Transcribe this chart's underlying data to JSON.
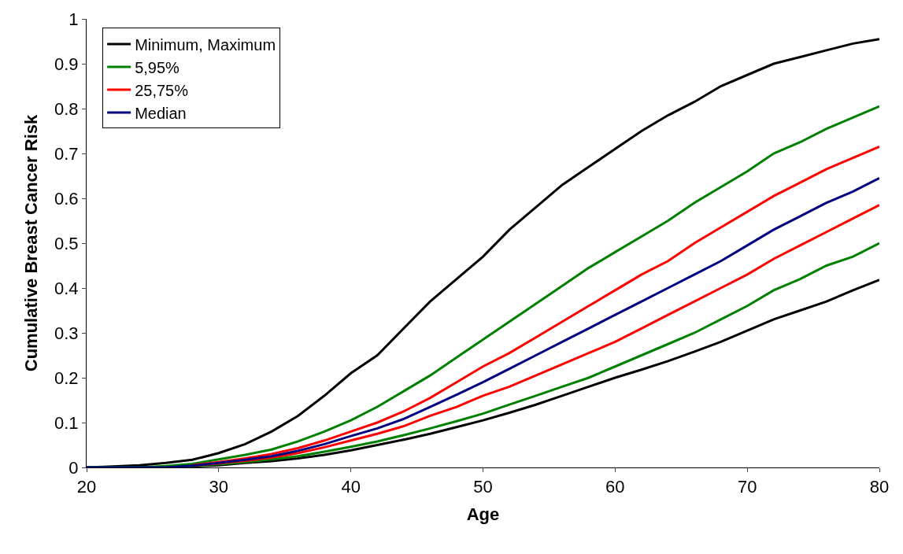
{
  "chart_data": {
    "type": "line",
    "xlabel": "Age",
    "ylabel": "Cumulative Breast Cancer Risk",
    "x": [
      20,
      22,
      24,
      26,
      28,
      30,
      32,
      34,
      36,
      38,
      40,
      42,
      44,
      46,
      48,
      50,
      52,
      54,
      56,
      58,
      60,
      62,
      64,
      66,
      68,
      70,
      72,
      74,
      76,
      78,
      80
    ],
    "series": [
      {
        "name": "Minimum, Maximum",
        "color": "#000000",
        "values": [
          0,
          0.002,
          0.005,
          0.01,
          0.017,
          0.032,
          0.052,
          0.08,
          0.115,
          0.16,
          0.21,
          0.25,
          0.31,
          0.37,
          0.42,
          0.47,
          0.53,
          0.58,
          0.63,
          0.67,
          0.71,
          0.75,
          0.785,
          0.815,
          0.85,
          0.875,
          0.9,
          0.915,
          0.93,
          0.945,
          0.955
        ]
      },
      {
        "name": null,
        "color": "#000000",
        "values": [
          0,
          0,
          0,
          0,
          0.002,
          0.005,
          0.01,
          0.014,
          0.02,
          0.028,
          0.038,
          0.05,
          0.062,
          0.075,
          0.09,
          0.105,
          0.122,
          0.14,
          0.16,
          0.18,
          0.2,
          0.218,
          0.237,
          0.258,
          0.28,
          0.305,
          0.33,
          0.35,
          0.37,
          0.395,
          0.418
        ]
      },
      {
        "name": "5,95%",
        "color": "#008000",
        "values": [
          0,
          0,
          0,
          0.003,
          0.008,
          0.018,
          0.028,
          0.04,
          0.058,
          0.08,
          0.105,
          0.135,
          0.17,
          0.205,
          0.245,
          0.285,
          0.325,
          0.365,
          0.405,
          0.445,
          0.48,
          0.515,
          0.55,
          0.59,
          0.625,
          0.66,
          0.7,
          0.725,
          0.755,
          0.78,
          0.805
        ]
      },
      {
        "name": null,
        "color": "#008000",
        "values": [
          0,
          0,
          0,
          0,
          0.003,
          0.007,
          0.012,
          0.018,
          0.025,
          0.035,
          0.046,
          0.058,
          0.072,
          0.087,
          0.103,
          0.12,
          0.14,
          0.16,
          0.18,
          0.2,
          0.225,
          0.25,
          0.275,
          0.3,
          0.33,
          0.36,
          0.395,
          0.42,
          0.45,
          0.47,
          0.5
        ]
      },
      {
        "name": "25,75%",
        "color": "#ff0000",
        "values": [
          null,
          null,
          null,
          null,
          0.005,
          0.012,
          0.02,
          0.03,
          0.043,
          0.06,
          0.08,
          0.1,
          0.125,
          0.155,
          0.19,
          0.225,
          0.255,
          0.29,
          0.325,
          0.36,
          0.395,
          0.43,
          0.46,
          0.5,
          0.535,
          0.57,
          0.605,
          0.635,
          0.665,
          0.69,
          0.715
        ]
      },
      {
        "name": null,
        "color": "#ff0000",
        "values": [
          null,
          null,
          null,
          null,
          0.004,
          0.009,
          0.015,
          0.022,
          0.032,
          0.045,
          0.06,
          0.075,
          0.092,
          0.115,
          0.135,
          0.16,
          0.18,
          0.205,
          0.23,
          0.255,
          0.28,
          0.31,
          0.34,
          0.37,
          0.4,
          0.43,
          0.465,
          0.495,
          0.525,
          0.555,
          0.585
        ]
      },
      {
        "name": "Median",
        "color": "#000080",
        "values": [
          0,
          0,
          0,
          0,
          0.004,
          0.01,
          0.017,
          0.025,
          0.037,
          0.052,
          0.07,
          0.087,
          0.108,
          0.135,
          0.162,
          0.19,
          0.22,
          0.25,
          0.28,
          0.31,
          0.34,
          0.37,
          0.4,
          0.43,
          0.46,
          0.495,
          0.53,
          0.56,
          0.59,
          0.615,
          0.645
        ]
      }
    ],
    "xlim": [
      20,
      80
    ],
    "xticks": [
      20,
      30,
      40,
      50,
      60,
      70,
      80
    ],
    "ylim": [
      0,
      1
    ],
    "yticks": [
      0,
      0.1,
      0.2,
      0.3,
      0.4,
      0.5,
      0.6,
      0.7,
      0.8,
      0.9,
      1
    ],
    "legend": "top left",
    "marker": "none",
    "line_style": "solid"
  }
}
